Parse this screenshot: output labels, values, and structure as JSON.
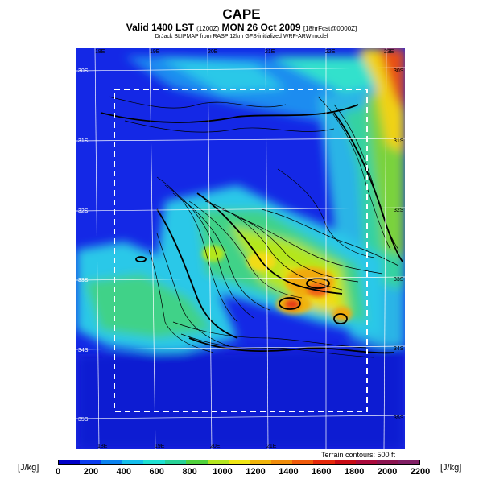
{
  "header": {
    "title": "CAPE",
    "subtitle_main": "Valid 1400 LST",
    "subtitle_code": "(1200Z)",
    "subtitle_date": "MON 26 Oct 2009",
    "subtitle_forecast": "[18hrFcst@0000Z]",
    "credit": "DrJack BLIPMAP from RASP 12km GFS-initialized WRF-ARW model"
  },
  "map": {
    "lon_labels_top": [
      "18E",
      "19E",
      "20E",
      "21E",
      "22E",
      "23E"
    ],
    "lon_labels_bottom": [
      "18E",
      "19E",
      "20E",
      "21E"
    ],
    "lat_labels_right": [
      "30S",
      "31S",
      "32S",
      "33S",
      "34S",
      "35S"
    ],
    "lat_labels_left": [
      "30S",
      "31S",
      "32S",
      "33S",
      "34S",
      "35S"
    ],
    "terrain_note": "Terrain contours: 500 ft"
  },
  "legend": {
    "unit_left": "[J/kg]",
    "unit_right": "[J/kg]",
    "ticks": [
      "0",
      "200",
      "400",
      "600",
      "800",
      "1000",
      "1200",
      "1400",
      "1600",
      "1800",
      "2000",
      "2200"
    ],
    "colors": [
      "#0000c8",
      "#0a3cf0",
      "#0a82f0",
      "#14beec",
      "#1ee1d2",
      "#28d296",
      "#50d23c",
      "#b4e61e",
      "#f0e614",
      "#f0b40a",
      "#f08c0a",
      "#f05a0a",
      "#e6280a",
      "#c80a14",
      "#aa0a3c",
      "#8c1450",
      "#801e64"
    ]
  },
  "colors": {
    "low": "#1f4fe8",
    "mid": "#2ec0e8",
    "high": "#e83214",
    "window_box": "#ffffff"
  }
}
